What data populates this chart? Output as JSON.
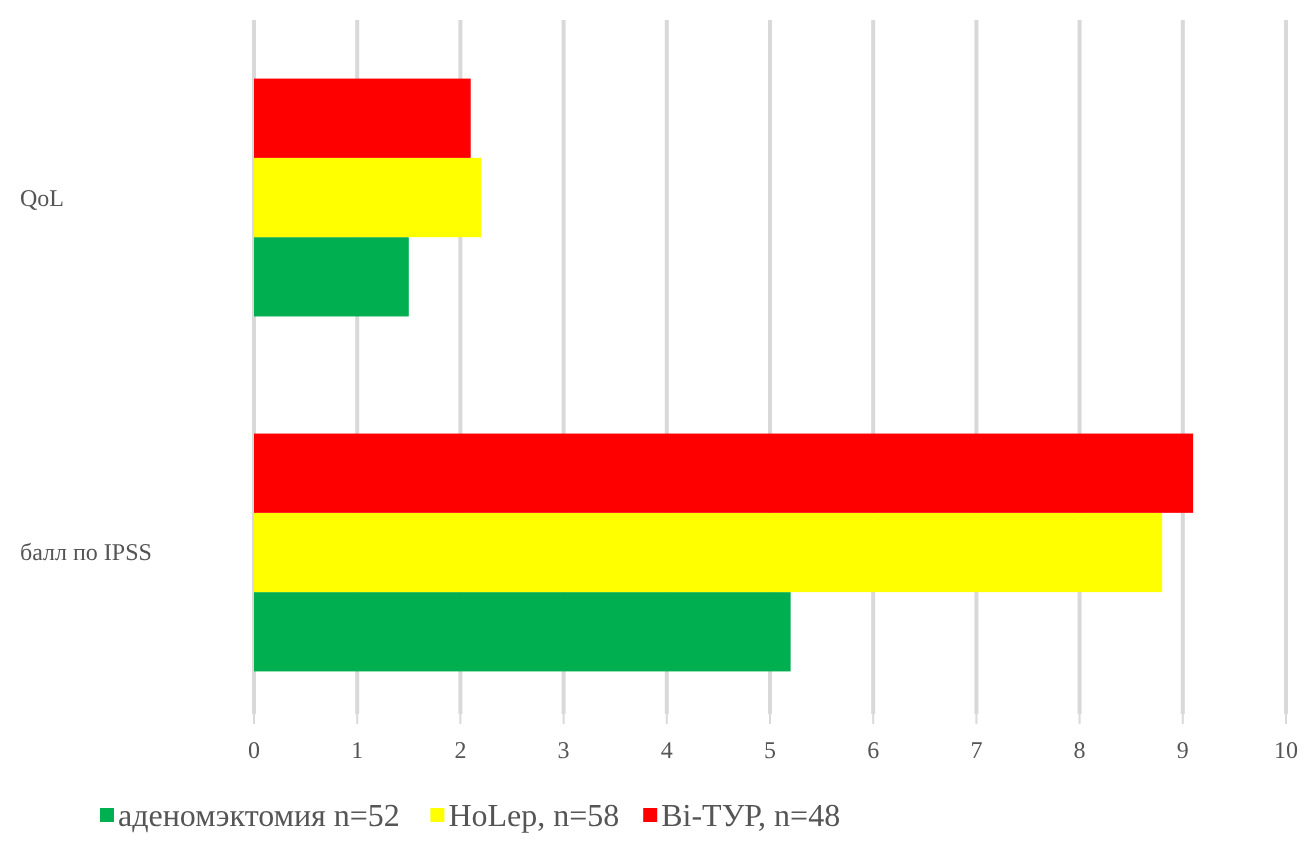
{
  "chart_data": {
    "type": "bar",
    "orientation": "horizontal",
    "categories": [
      "QoL",
      "балл по IPSS"
    ],
    "series": [
      {
        "name": "аденомэктомия n=52",
        "color": "#00b050",
        "values": [
          1.5,
          5.2
        ]
      },
      {
        "name": "HoLep, n=58",
        "color": "#ffff00",
        "values": [
          2.2,
          8.8
        ]
      },
      {
        "name": "Bi-TУР, n=48",
        "color": "#ff0000",
        "values": [
          2.1,
          9.1
        ]
      }
    ],
    "xlim": [
      0,
      10
    ],
    "xticks": [
      0,
      1,
      2,
      3,
      4,
      5,
      6,
      7,
      8,
      9,
      10
    ],
    "grid": "x",
    "legend": "bottom"
  }
}
